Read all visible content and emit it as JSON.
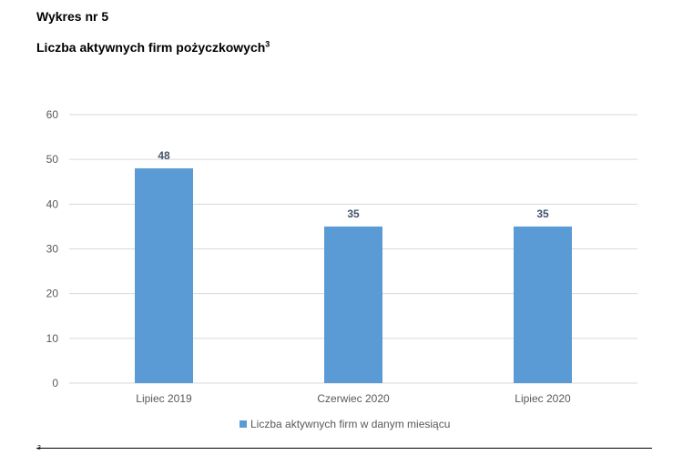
{
  "header": {
    "figure_label": "Wykres nr 5",
    "title": "Liczba aktywnych firm pożyczkowych",
    "title_footnote_ref": "3"
  },
  "footnote": {
    "marker": "3"
  },
  "chart_data": {
    "type": "bar",
    "title": "",
    "xlabel": "",
    "ylabel": "",
    "categories": [
      "Lipiec 2019",
      "Czerwiec 2020",
      "Lipiec 2020"
    ],
    "series": [
      {
        "name": "Liczba aktywnych firm w danym miesiącu",
        "values": [
          48,
          35,
          35
        ],
        "color": "#5b9bd5"
      }
    ],
    "ylim": [
      0,
      60
    ],
    "yticks": [
      0,
      10,
      20,
      30,
      40,
      50,
      60
    ],
    "grid": true,
    "data_labels": true,
    "legend_position": "bottom",
    "colors": {
      "bar": "#5b9bd5",
      "data_label": "#44546a",
      "tick_label": "#595959",
      "grid": "#d9d9d9"
    }
  }
}
